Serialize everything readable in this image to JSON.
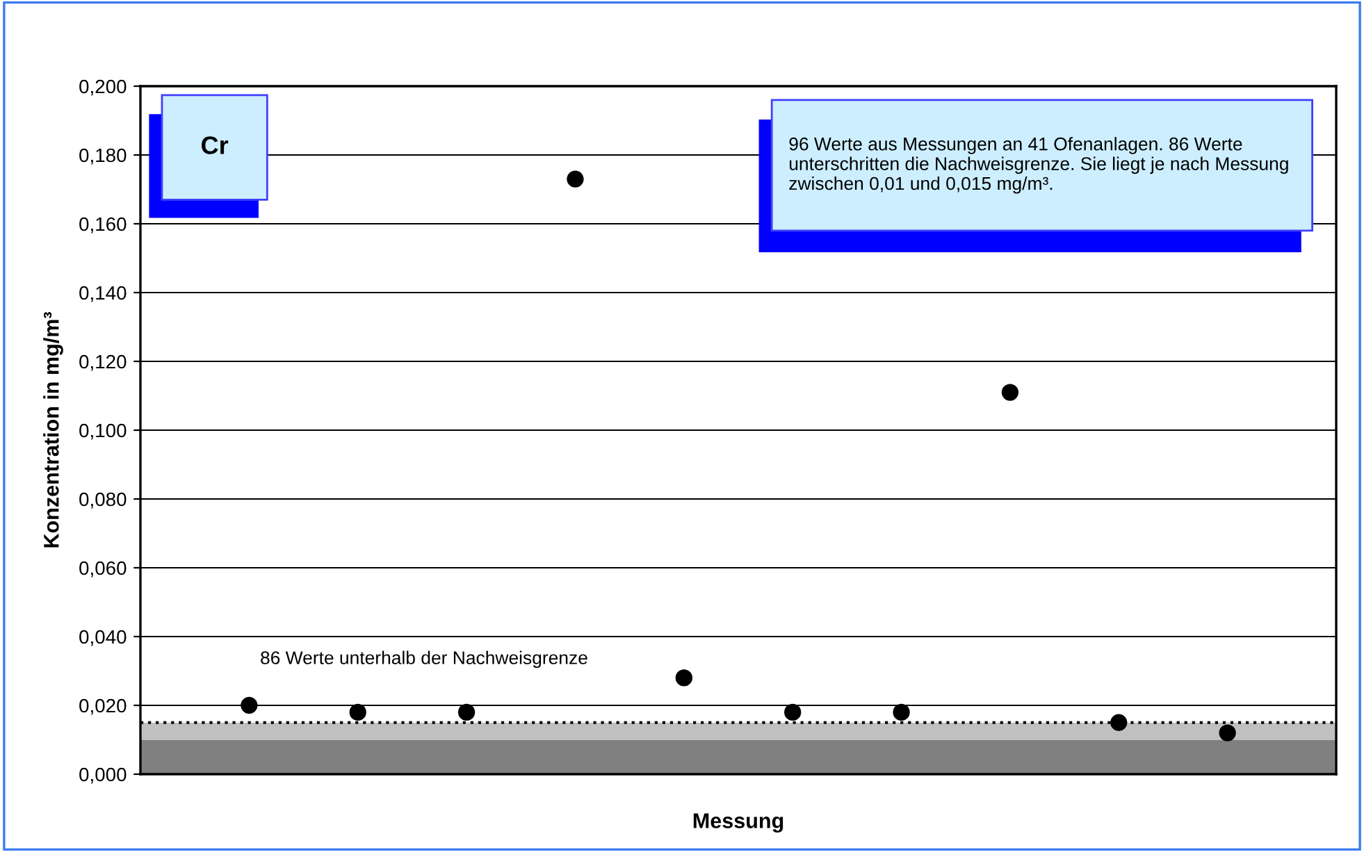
{
  "chart_data": {
    "type": "scatter",
    "title": "Cr",
    "xlabel": "Messung",
    "ylabel": "Konzentration in mg/m³",
    "categories": [
      null,
      null,
      null,
      null,
      null,
      null,
      null,
      null,
      null,
      null
    ],
    "values": [
      0.02,
      0.018,
      0.018,
      0.173,
      0.028,
      0.018,
      0.018,
      0.111,
      0.015,
      0.012
    ],
    "color": "#000000",
    "marker": "circle",
    "ylim": [
      0,
      0.2
    ],
    "yticks": [
      {
        "value": 0,
        "label": "0,000"
      },
      {
        "value": 0.02,
        "label": "0,020"
      },
      {
        "value": 0.04,
        "label": "0,040"
      },
      {
        "value": 0.06,
        "label": "0,060"
      },
      {
        "value": 0.08,
        "label": "0,080"
      },
      {
        "value": 0.1,
        "label": "0,100"
      },
      {
        "value": 0.12,
        "label": "0,120"
      },
      {
        "value": 0.14,
        "label": "0,140"
      },
      {
        "value": 0.16,
        "label": "0,160"
      },
      {
        "value": 0.18,
        "label": "0,180"
      },
      {
        "value": 0.2,
        "label": "0,200"
      }
    ],
    "tick_labels": "y",
    "grid": "y",
    "bands": [
      {
        "axis": "y",
        "from": 0,
        "to": 0.01,
        "color": "#808080"
      },
      {
        "axis": "y",
        "from": 0.01,
        "to": 0.015,
        "color": "#c0c0c0"
      }
    ],
    "ref_lines": [
      {
        "axis": "y",
        "value": 0.015,
        "color": "#000000",
        "line_style": "dotted"
      }
    ],
    "annotations": [
      "86 Werte unterhalb der Nachweisgrenze",
      "96 Werte aus Messungen an 41 Ofenanlagen. 86 Werte unterschritten die Nachweisgrenze. Sie liegt je nach Messung zwischen 0,01 und 0,015 mg/m³."
    ]
  }
}
